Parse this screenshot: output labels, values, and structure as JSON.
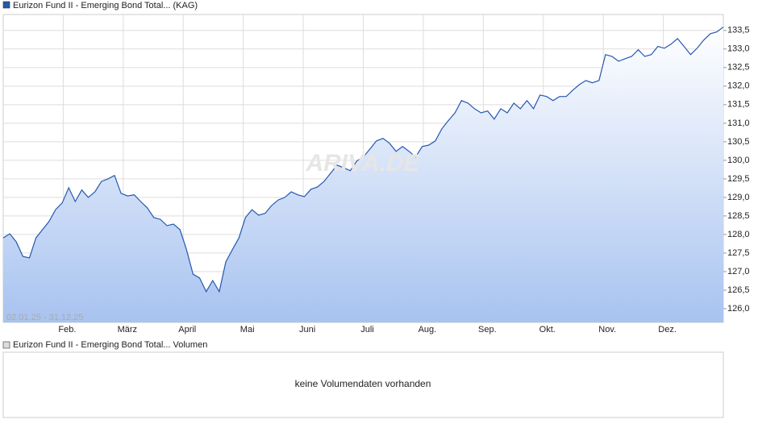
{
  "chart_data": {
    "type": "line",
    "date_range": "02.01.25 - 31.12.25",
    "watermark": "ARIVA.DE",
    "month_labels": [
      "Feb.",
      "März",
      "April",
      "Mai",
      "Juni",
      "Juli",
      "Aug.",
      "Sep.",
      "Okt.",
      "Nov.",
      "Dez."
    ],
    "series": [
      {
        "name": "Eurizon Fund II - Emerging Bond Total... (KAG)",
        "color": "#2458b0",
        "values": [
          127.91,
          128.02,
          127.8,
          127.41,
          127.37,
          127.91,
          128.13,
          128.35,
          128.67,
          128.85,
          129.26,
          128.89,
          129.2,
          129.0,
          129.15,
          129.43,
          129.5,
          129.59,
          129.11,
          129.04,
          129.07,
          128.89,
          128.72,
          128.46,
          128.41,
          128.24,
          128.28,
          128.13,
          127.59,
          126.93,
          126.83,
          126.46,
          126.76,
          126.46,
          127.26,
          127.59,
          127.91,
          128.46,
          128.67,
          128.52,
          128.57,
          128.78,
          128.93,
          129.0,
          129.15,
          129.07,
          129.02,
          129.22,
          129.28,
          129.43,
          129.65,
          129.87,
          129.8,
          129.72,
          129.98,
          130.09,
          130.3,
          130.52,
          130.59,
          130.46,
          130.24,
          130.37,
          130.24,
          130.09,
          130.37,
          130.41,
          130.52,
          130.85,
          131.07,
          131.28,
          131.61,
          131.54,
          131.39,
          131.28,
          131.33,
          131.11,
          131.39,
          131.28,
          131.54,
          131.39,
          131.61,
          131.39,
          131.76,
          131.72,
          131.61,
          131.72,
          131.72,
          131.89,
          132.04,
          132.15,
          132.09,
          132.15,
          132.85,
          132.8,
          132.67,
          132.74,
          132.8,
          132.98,
          132.8,
          132.85,
          133.07,
          133.02,
          133.13,
          133.28,
          133.07,
          132.85,
          133.02,
          133.24,
          133.41,
          133.46,
          133.59
        ]
      }
    ],
    "ylim": [
      125.63,
      133.93
    ],
    "yticks": [
      {
        "value": 126,
        "label": "126,0"
      },
      {
        "value": 126.5,
        "label": "126,5"
      },
      {
        "value": 127,
        "label": "127,0"
      },
      {
        "value": 127.5,
        "label": "127,5"
      },
      {
        "value": 128,
        "label": "128,0"
      },
      {
        "value": 128.5,
        "label": "128,5"
      },
      {
        "value": 129,
        "label": "129,0"
      },
      {
        "value": 129.5,
        "label": "129,5"
      },
      {
        "value": 130,
        "label": "130,0"
      },
      {
        "value": 130.5,
        "label": "130,5"
      },
      {
        "value": 131,
        "label": "131,0"
      },
      {
        "value": 131.5,
        "label": "131,5"
      },
      {
        "value": 132,
        "label": "132,0"
      },
      {
        "value": 132.5,
        "label": "132,5"
      },
      {
        "value": 133,
        "label": "133,0"
      },
      {
        "value": 133.5,
        "label": "133,5"
      }
    ],
    "grid": true
  },
  "volume_panel": {
    "legend": "Eurizon Fund II - Emerging Bond Total... Volumen",
    "message": "keine Volumendaten vorhanden"
  }
}
